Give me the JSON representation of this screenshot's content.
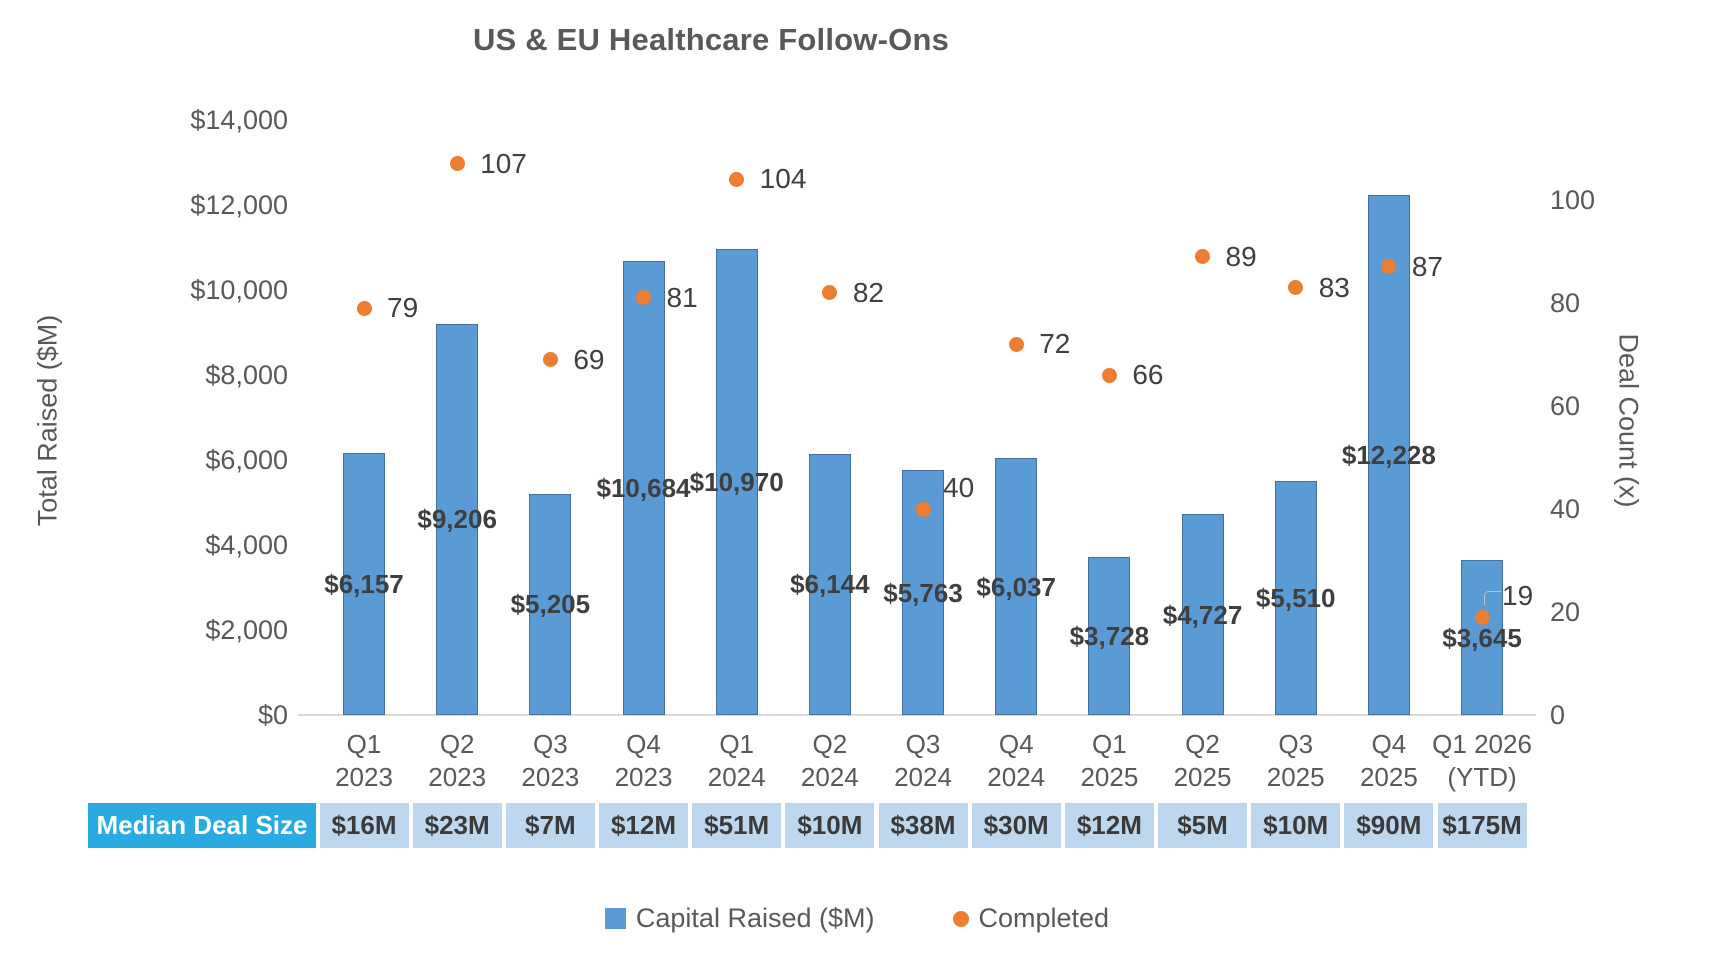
{
  "title": "US & EU Healthcare Follow-Ons",
  "chart_data": {
    "type": "bar",
    "subtype": "combo-bar-scatter-dual-axis",
    "title": "US & EU Healthcare Follow-Ons",
    "grid": false,
    "legend_position": "bottom",
    "categories": [
      [
        "Q1",
        "2023"
      ],
      [
        "Q2",
        "2023"
      ],
      [
        "Q3",
        "2023"
      ],
      [
        "Q4",
        "2023"
      ],
      [
        "Q1",
        "2024"
      ],
      [
        "Q2",
        "2024"
      ],
      [
        "Q3",
        "2024"
      ],
      [
        "Q4",
        "2024"
      ],
      [
        "Q1",
        "2025"
      ],
      [
        "Q2",
        "2025"
      ],
      [
        "Q3",
        "2025"
      ],
      [
        "Q4",
        "2025"
      ],
      [
        "Q1 2026",
        "(YTD)"
      ]
    ],
    "series": [
      {
        "name": "Capital Raised ($M)",
        "type": "bar",
        "axis": "left",
        "color": "#5B9BD5",
        "values": [
          6157,
          9206,
          5205,
          10684,
          10970,
          6144,
          5763,
          6037,
          3728,
          4727,
          5510,
          12228,
          3645
        ],
        "labels": [
          "$6,157",
          "$9,206",
          "$5,205",
          "$10,684",
          "$10,970",
          "$6,144",
          "$5,763",
          "$6,037",
          "$3,728",
          "$4,727",
          "$5,510",
          "$12,228",
          "$3,645"
        ]
      },
      {
        "name": "Completed",
        "type": "scatter",
        "axis": "right",
        "color": "#ED7D31",
        "values": [
          79,
          107,
          69,
          81,
          104,
          82,
          40,
          72,
          66,
          89,
          83,
          87,
          19
        ]
      }
    ],
    "left_axis": {
      "title": "Total Raised ($M)",
      "min": 0,
      "max": 14000,
      "tick_step": 2000,
      "ticks": [
        {
          "label": "$14,000",
          "value": 14000
        },
        {
          "label": "$12,000",
          "value": 12000
        },
        {
          "label": "$10,000",
          "value": 10000
        },
        {
          "label": "$8,000",
          "value": 8000
        },
        {
          "label": "$6,000",
          "value": 6000
        },
        {
          "label": "$4,000",
          "value": 4000
        },
        {
          "label": "$2,000",
          "value": 2000
        },
        {
          "label": "$0",
          "value": 0
        }
      ]
    },
    "right_axis": {
      "title": "Deal Count (x)",
      "min": 0,
      "max": 100,
      "tick_step": 20,
      "ticks": [
        {
          "label": "100",
          "value": 100
        },
        {
          "label": "80",
          "value": 80
        },
        {
          "label": "60",
          "value": 60
        },
        {
          "label": "40",
          "value": 40
        },
        {
          "label": "20",
          "value": 20
        },
        {
          "label": "0",
          "value": 0
        }
      ]
    }
  },
  "median_row": {
    "header": "Median Deal Size",
    "values": [
      "$16M",
      "$23M",
      "$7M",
      "$12M",
      "$51M",
      "$10M",
      "$38M",
      "$30M",
      "$12M",
      "$5M",
      "$10M",
      "$90M",
      "$175M"
    ],
    "header_bg": "#29ABE2",
    "cell_bg": "#BDD7EE"
  },
  "legend": [
    {
      "label": "Capital Raised ($M)",
      "swatch": "square",
      "color": "#5B9BD5"
    },
    {
      "label": "Completed",
      "swatch": "circle",
      "color": "#ED7D31"
    }
  ],
  "colors": {
    "bar_fill": "#5B9BD5",
    "bar_border": "#41719C",
    "dot": "#ED7D31",
    "axis_text": "#595959",
    "data_label": "#3F3F3F",
    "axis_line": "#D9D9D9",
    "median_header_bg": "#29ABE2",
    "median_cell_bg": "#BDD7EE"
  }
}
